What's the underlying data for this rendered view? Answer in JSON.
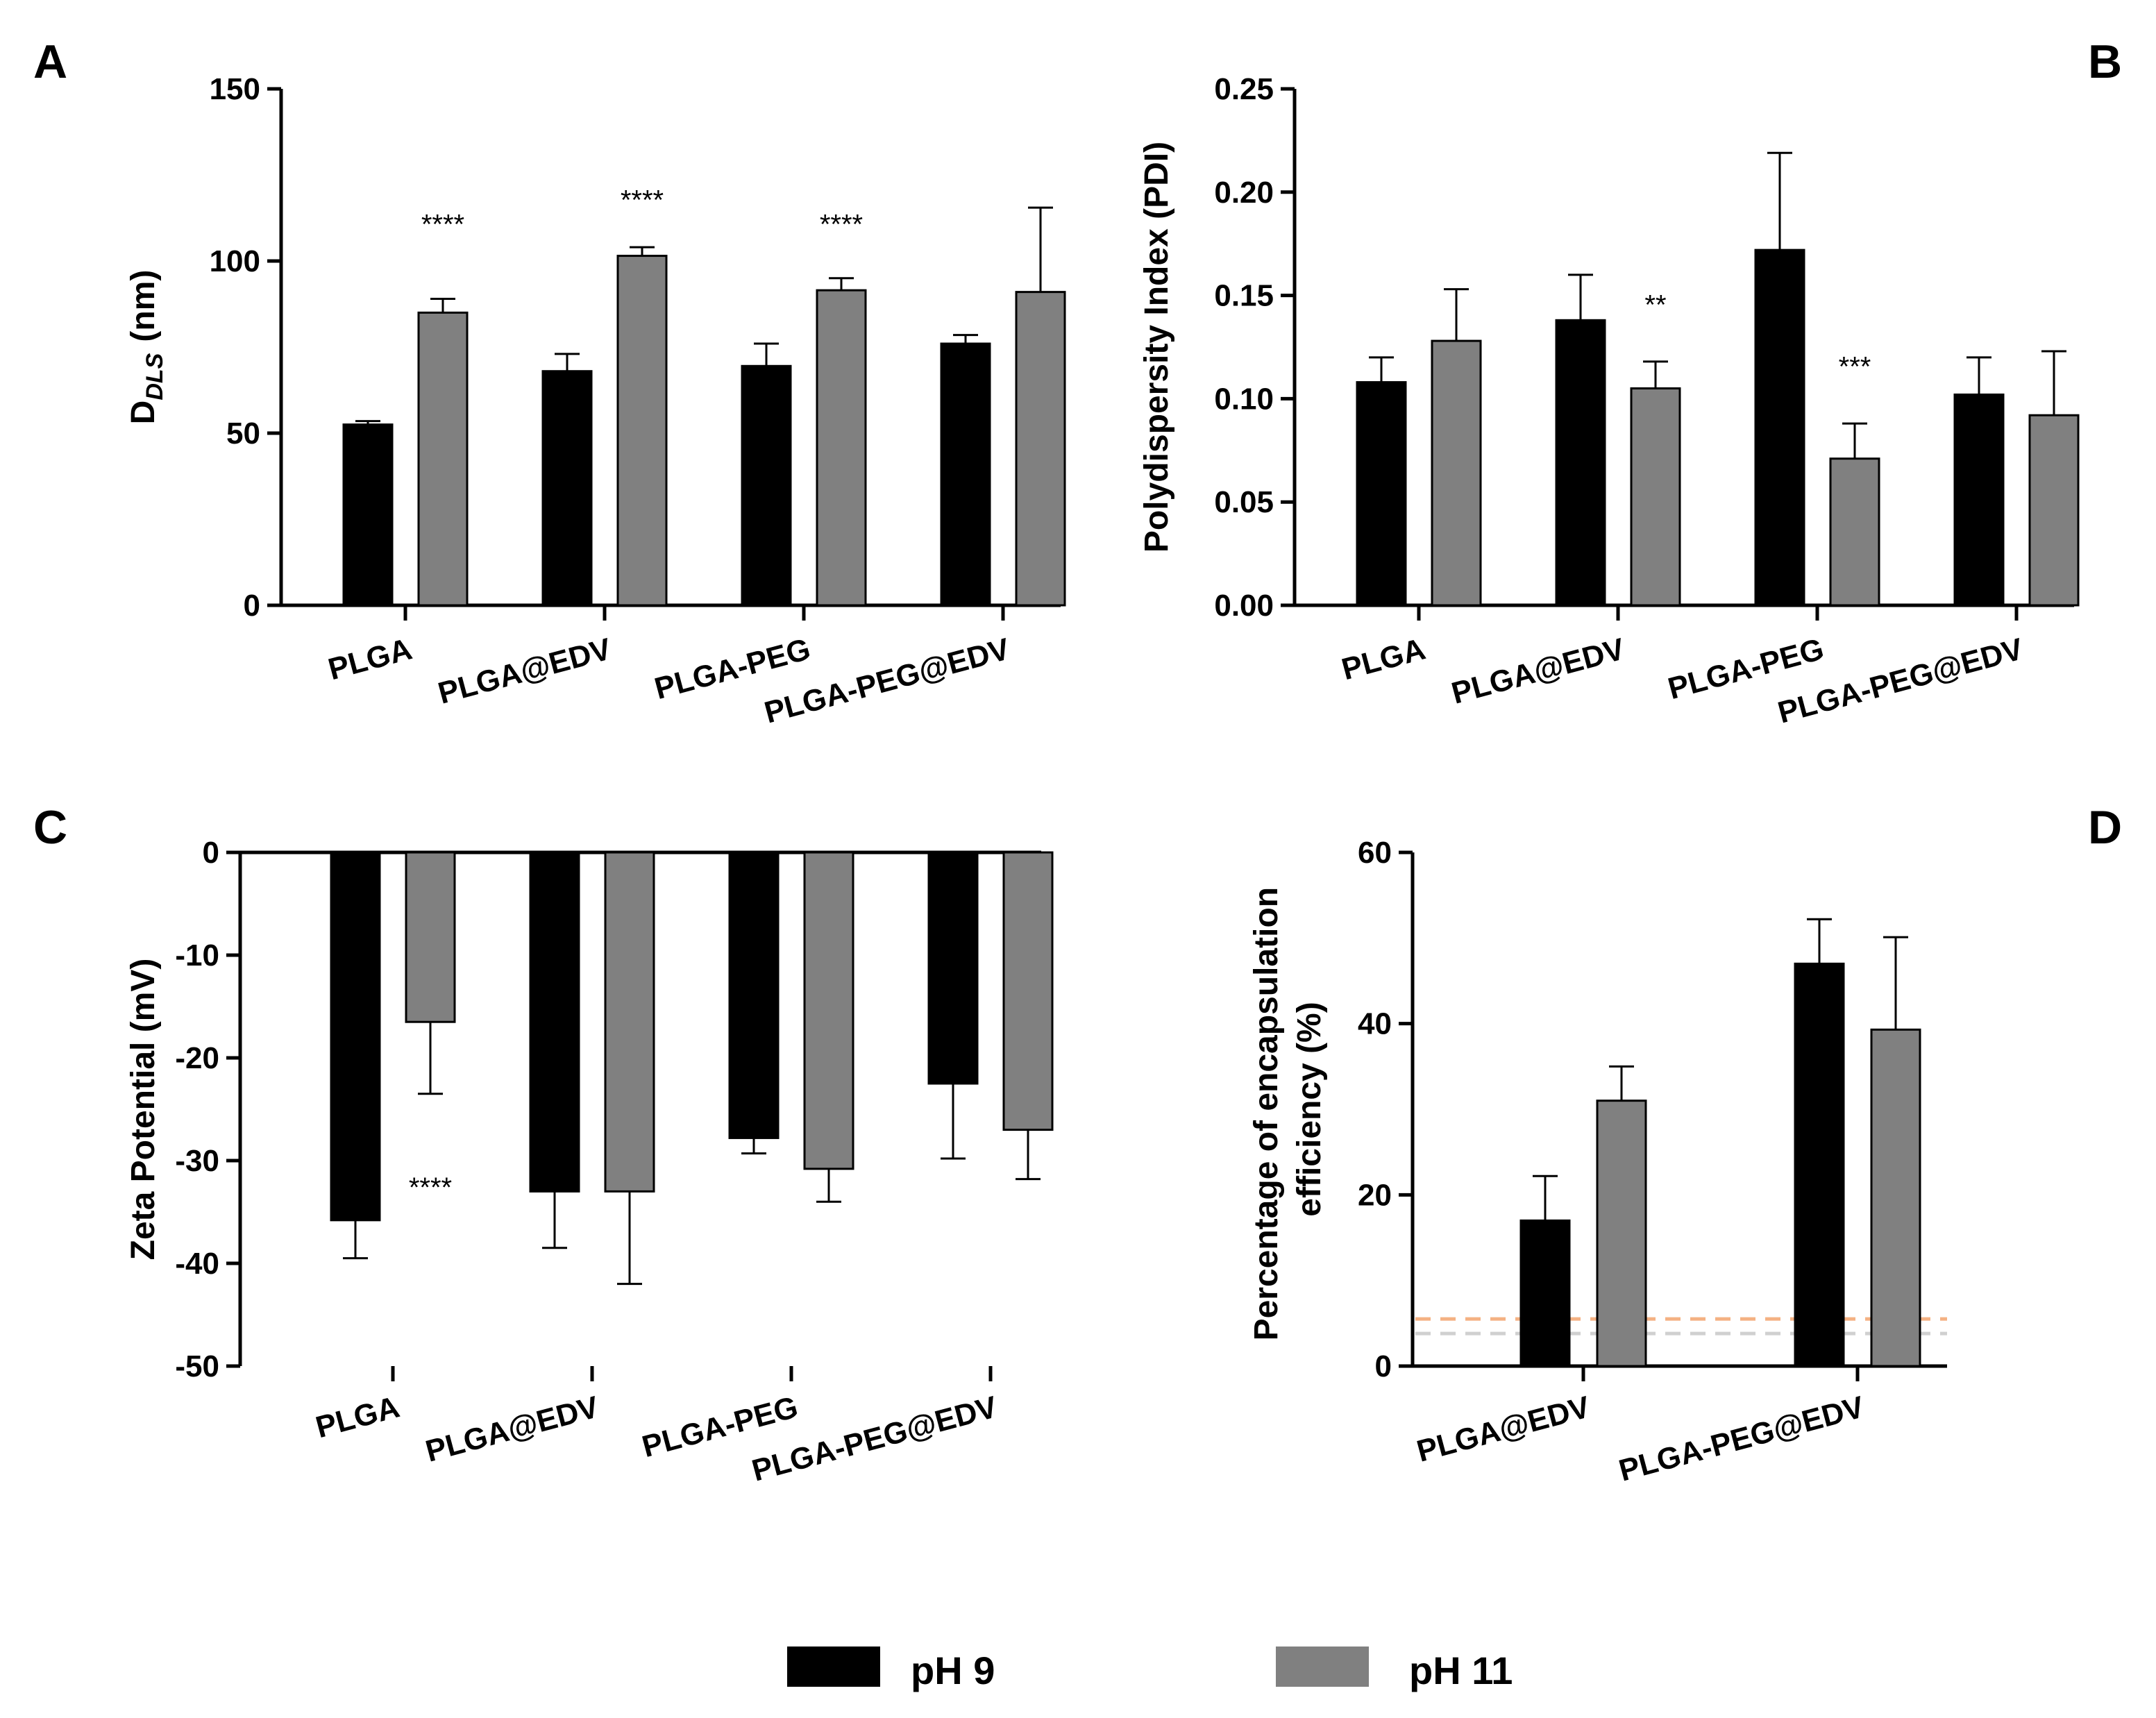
{
  "legend": [
    {
      "label": "pH 9",
      "color": "#000000"
    },
    {
      "label": "pH 11",
      "color": "#808080"
    }
  ],
  "chart_data": [
    {
      "panel": "A",
      "type": "bar",
      "ylabel_main": "D",
      "ylabel_sub": "DLS",
      "ylabel_unit": "(nm)",
      "ylim": [
        0,
        150
      ],
      "yticks": [
        "0",
        "50",
        "100",
        "150"
      ],
      "categories": [
        "PLGA",
        "PLGA@EDV",
        "PLGA-PEG",
        "PLGA-PEG@EDV"
      ],
      "series": [
        {
          "name": "pH 9",
          "color": "#000000",
          "values": [
            52.5,
            68,
            69.5,
            76
          ],
          "errors": [
            1,
            5,
            6.5,
            2.5
          ]
        },
        {
          "name": "pH 11",
          "color": "#808080",
          "values": [
            85,
            101.5,
            91.5,
            91
          ],
          "errors": [
            4,
            2.5,
            3.5,
            24.5
          ]
        }
      ],
      "annotations": [
        {
          "text": "****",
          "category": 0,
          "series": 1,
          "value": 108
        },
        {
          "text": "****",
          "category": 1,
          "series": 1,
          "value": 115
        },
        {
          "text": "****",
          "category": 2,
          "series": 1,
          "value": 108
        }
      ]
    },
    {
      "panel": "B",
      "type": "bar",
      "ylabel": "Polydispersity Index (PDI)",
      "ylim": [
        0,
        0.25
      ],
      "yticks": [
        "0.00",
        "0.05",
        "0.10",
        "0.15",
        "0.20",
        "0.25"
      ],
      "categories": [
        "PLGA",
        "PLGA@EDV",
        "PLGA-PEG",
        "PLGA-PEG@EDV"
      ],
      "series": [
        {
          "name": "pH 9",
          "color": "#000000",
          "values": [
            0.108,
            0.138,
            0.172,
            0.102
          ],
          "errors": [
            0.012,
            0.022,
            0.047,
            0.018
          ]
        },
        {
          "name": "pH 11",
          "color": "#808080",
          "values": [
            0.128,
            0.105,
            0.071,
            0.092
          ],
          "errors": [
            0.025,
            0.013,
            0.017,
            0.031
          ]
        }
      ],
      "annotations": [
        {
          "text": "**",
          "category": 1,
          "series": 1,
          "value": 0.141
        },
        {
          "text": "***",
          "category": 2,
          "series": 1,
          "value": 0.111
        }
      ]
    },
    {
      "panel": "C",
      "type": "bar",
      "ylabel": "Zeta Potential (mV)",
      "ylim": [
        -50,
        0
      ],
      "yticks": [
        "0",
        "-10",
        "-20",
        "-30",
        "-40",
        "-50"
      ],
      "categories": [
        "PLGA",
        "PLGA@EDV",
        "PLGA-PEG",
        "PLGA-PEG@EDV"
      ],
      "series": [
        {
          "name": "pH 9",
          "color": "#000000",
          "values": [
            -35.8,
            -33,
            -27.8,
            -22.5
          ],
          "errors": [
            3.7,
            5.5,
            1.5,
            7.3
          ]
        },
        {
          "name": "pH 11",
          "color": "#808080",
          "values": [
            -16.5,
            -33,
            -30.8,
            -27
          ],
          "errors": [
            7,
            9,
            3.2,
            4.8
          ]
        }
      ],
      "annotations": [
        {
          "text": "****",
          "category": 0,
          "series": 1,
          "value": -33.5
        }
      ]
    },
    {
      "panel": "D",
      "type": "bar",
      "ylabel": "Percentage of encapsulation efficiency (%)",
      "ylabel_lines": [
        "Percentage of encapsulation",
        "efficiency (%)"
      ],
      "ylim": [
        0,
        60
      ],
      "yticks": [
        "0",
        "20",
        "40",
        "60"
      ],
      "categories": [
        "PLGA@EDV",
        "PLGA-PEG@EDV"
      ],
      "series": [
        {
          "name": "pH 9",
          "color": "#000000",
          "values": [
            17,
            47
          ],
          "errors": [
            5.2,
            5.2
          ]
        },
        {
          "name": "pH 11",
          "color": "#808080",
          "values": [
            31,
            39.3
          ],
          "errors": [
            4,
            10.8
          ]
        }
      ],
      "reference_lines": [
        {
          "value": 5.5,
          "color": "#f4b183"
        },
        {
          "value": 3.8,
          "color": "#d0d0d0"
        }
      ]
    }
  ]
}
